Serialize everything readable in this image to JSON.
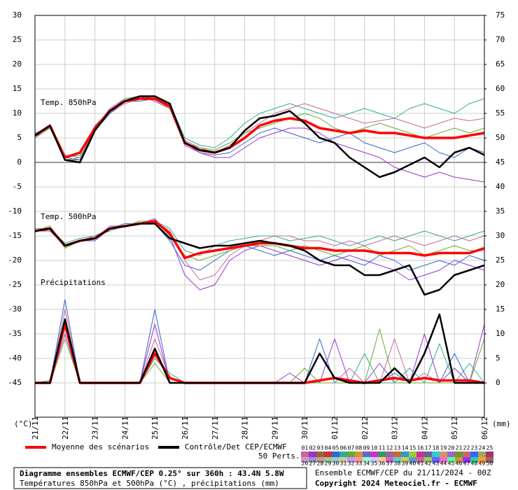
{
  "chart_data": {
    "type": "line",
    "ylabel": "(°C)",
    "y2label": "(mm)",
    "xlim": [
      0,
      360
    ],
    "x": [
      0,
      12,
      24,
      36,
      48,
      60,
      72,
      84,
      96,
      108,
      120,
      132,
      144,
      156,
      168,
      180,
      192,
      204,
      216,
      228,
      240,
      252,
      264,
      276,
      288,
      300,
      312,
      324,
      336,
      348,
      360
    ],
    "xticks": [
      {
        "value": 0,
        "label": "21/11"
      },
      {
        "value": 24,
        "label": "22/11"
      },
      {
        "value": 48,
        "label": "23/11"
      },
      {
        "value": 72,
        "label": "24/11"
      },
      {
        "value": 96,
        "label": "25/11"
      },
      {
        "value": 120,
        "label": "26/11"
      },
      {
        "value": 144,
        "label": "27/11"
      },
      {
        "value": 168,
        "label": "28/11"
      },
      {
        "value": 192,
        "label": "29/11"
      },
      {
        "value": 216,
        "label": "30/11"
      },
      {
        "value": 240,
        "label": "01/12"
      },
      {
        "value": 264,
        "label": "02/12"
      },
      {
        "value": 288,
        "label": "03/12"
      },
      {
        "value": 312,
        "label": "04/12"
      },
      {
        "value": 336,
        "label": "05/12"
      },
      {
        "value": 360,
        "label": "06/12"
      }
    ],
    "ylim": [
      -52,
      30
    ],
    "yticks": [
      30,
      25,
      20,
      15,
      10,
      5,
      0,
      -5,
      -10,
      -15,
      -20,
      -25,
      -30,
      -35,
      -40,
      -45
    ],
    "y2lim": [
      -7,
      75
    ],
    "y2ticks": [
      75,
      70,
      65,
      60,
      55,
      50,
      45,
      40,
      35,
      30,
      25,
      20,
      15,
      10,
      5,
      0
    ],
    "grid": true,
    "annotations": [
      "Temp. 850hPa",
      "Temp. 500hPa",
      "Précipitations"
    ],
    "series": [
      {
        "name": "Moyenne des scénarios",
        "color": "#ff0000",
        "values": [
          5.5,
          7.5,
          1,
          2,
          7,
          10.5,
          12.5,
          13,
          13,
          11.5,
          4,
          2.5,
          2,
          3,
          5,
          7.5,
          8.5,
          9,
          8.5,
          7,
          6.5,
          6,
          6.5,
          6,
          6,
          5.5,
          5,
          5,
          5,
          5.5,
          6
        ]
      },
      {
        "name": "Contrôle/Det CEP/ECMWF",
        "color": "#000000",
        "values": [
          5.5,
          7.5,
          0.5,
          0,
          6.5,
          10.5,
          12.5,
          13.5,
          13.5,
          12,
          4,
          2.5,
          2,
          3,
          6.5,
          9,
          9.5,
          10.5,
          8,
          5,
          4,
          1,
          -1,
          -3,
          -2,
          -0.5,
          1,
          -1,
          2,
          3,
          1.5
        ]
      },
      {
        "color": "#cc6699",
        "values": [
          5.5,
          7,
          1.5,
          1,
          6.5,
          10,
          12,
          13,
          13.5,
          11,
          4.5,
          3,
          2,
          3.5,
          6,
          8,
          10,
          11,
          12,
          11,
          10,
          9,
          8,
          8.5,
          9,
          8,
          7,
          8,
          9,
          8.5,
          9
        ]
      },
      {
        "color": "#9933cc",
        "values": [
          5,
          7.5,
          0.5,
          0.5,
          7,
          11,
          13,
          13.5,
          12.5,
          11,
          3.5,
          2,
          1,
          1,
          3,
          5,
          6,
          7,
          7,
          6,
          4,
          3,
          2,
          1,
          -1,
          -2,
          -3,
          -2,
          -3,
          -3.5,
          -4
        ]
      },
      {
        "color": "#33aa99",
        "values": [
          6,
          7,
          1,
          1.5,
          7.5,
          10.5,
          12.5,
          13,
          13,
          12,
          5,
          3.5,
          3,
          5,
          8,
          10,
          11,
          12,
          11,
          10,
          9,
          10,
          11,
          10,
          9,
          11,
          12,
          11,
          10,
          12,
          13
        ]
      },
      {
        "color": "#3366cc",
        "values": [
          5.5,
          7.5,
          1,
          0.5,
          6.5,
          10,
          12.5,
          12.5,
          13,
          11.5,
          4,
          2,
          1.5,
          2,
          4,
          6,
          7,
          6,
          5,
          4,
          5,
          6,
          4,
          3,
          2,
          3,
          4,
          2,
          1,
          3,
          2
        ]
      },
      {
        "color": "#66aa33",
        "values": [
          5,
          7,
          0.5,
          1,
          7,
          10.5,
          13,
          13.5,
          13,
          11,
          4,
          3,
          2.5,
          4,
          6,
          7,
          8,
          9,
          10,
          9,
          7,
          6,
          7,
          8,
          7,
          6,
          5,
          6,
          7,
          6,
          7
        ]
      },
      {
        "color": "#ff0000",
        "values": [
          -14,
          -13.5,
          -17,
          -16,
          -15.5,
          -13.5,
          -13,
          -12.5,
          -12,
          -14.5,
          -19.5,
          -18.5,
          -18,
          -17.5,
          -17,
          -16.5,
          -16.5,
          -17,
          -17.5,
          -17.5,
          -18,
          -18,
          -18,
          -18.5,
          -18.5,
          -18.5,
          -19,
          -18.5,
          -18.5,
          -18.5,
          -17.5
        ]
      },
      {
        "color": "#000000",
        "values": [
          -14,
          -13.5,
          -17,
          -16,
          -15.5,
          -13.5,
          -13,
          -12.5,
          -12.5,
          -15.5,
          -16.5,
          -17.5,
          -17,
          -17,
          -16.5,
          -16,
          -16.5,
          -17,
          -18,
          -20,
          -21,
          -21,
          -23,
          -23,
          -22,
          -21,
          -27,
          -26,
          -23,
          -22,
          -21
        ]
      },
      {
        "color": "#cc6699",
        "values": [
          -14,
          -13,
          -17,
          -16,
          -15,
          -13.5,
          -13,
          -12,
          -12,
          -14,
          -20,
          -24,
          -23,
          -19,
          -17,
          -16,
          -15,
          -15,
          -16,
          -16,
          -17,
          -16,
          -17,
          -16,
          -15,
          -16,
          -17,
          -16,
          -15,
          -16,
          -15
        ]
      },
      {
        "color": "#9933cc",
        "values": [
          -14,
          -14,
          -17,
          -16,
          -15.5,
          -13,
          -13,
          -12.5,
          -11.5,
          -15,
          -23,
          -26,
          -25,
          -20,
          -18,
          -17,
          -18,
          -19,
          -20,
          -21,
          -20,
          -19,
          -20,
          -21,
          -22,
          -24,
          -23,
          -22,
          -20,
          -21,
          -22
        ]
      },
      {
        "color": "#33aa99",
        "values": [
          -13.5,
          -13.5,
          -16.5,
          -15.5,
          -15,
          -14,
          -13,
          -12,
          -12,
          -13.5,
          -18,
          -19,
          -17,
          -16,
          -15.5,
          -15,
          -15,
          -16,
          -15.5,
          -15,
          -16,
          -17,
          -16,
          -15,
          -16,
          -15,
          -14,
          -15,
          -16,
          -15,
          -14
        ]
      },
      {
        "color": "#3366cc",
        "values": [
          -14,
          -13.5,
          -17,
          -16,
          -16,
          -13.5,
          -12.5,
          -12.5,
          -12.5,
          -16,
          -21,
          -22,
          -20,
          -18,
          -17,
          -18,
          -19,
          -18,
          -19,
          -20,
          -19,
          -20,
          -21,
          -19,
          -20,
          -22,
          -21,
          -20,
          -21,
          -19,
          -20
        ]
      },
      {
        "color": "#66aa33",
        "values": [
          -14,
          -13,
          -17.5,
          -16,
          -15.5,
          -13.5,
          -13,
          -12,
          -12,
          -15,
          -19,
          -20,
          -19,
          -18,
          -17,
          -17,
          -17,
          -18,
          -17,
          -18,
          -19,
          -18,
          -17,
          -19,
          -18,
          -17,
          -19,
          -18,
          -17,
          -18,
          -18
        ]
      },
      {
        "color": "#ff0000",
        "axis": "y2",
        "values": [
          0,
          0,
          12,
          0,
          0,
          0,
          0,
          0,
          6,
          1,
          0,
          0,
          0,
          0,
          0,
          0,
          0,
          0,
          0,
          0.5,
          1,
          0.5,
          0,
          0.5,
          1,
          0.5,
          1,
          0.5,
          0.5,
          0.5,
          0
        ]
      },
      {
        "color": "#000000",
        "axis": "y2",
        "values": [
          0,
          0,
          13,
          0,
          0,
          0,
          0,
          0,
          7,
          0,
          0,
          0,
          0,
          0,
          0,
          0,
          0,
          0,
          0,
          6,
          1,
          0,
          0,
          0,
          3,
          0,
          6,
          14,
          0,
          0,
          0
        ]
      },
      {
        "color": "#cc6699",
        "axis": "y2",
        "values": [
          0,
          0,
          15,
          0,
          0,
          0,
          0,
          0,
          9,
          1,
          0,
          0,
          0,
          0,
          0,
          0,
          0,
          0,
          0,
          0,
          0,
          3,
          0,
          0,
          9,
          0,
          2,
          0,
          0,
          0,
          0
        ]
      },
      {
        "color": "#9933cc",
        "axis": "y2",
        "values": [
          0,
          0,
          10,
          0,
          0,
          0,
          0,
          0,
          12,
          0,
          0,
          0,
          0,
          0,
          0,
          0,
          0,
          2,
          0,
          0,
          9,
          0,
          0,
          4,
          0,
          0,
          10,
          0,
          3,
          0,
          12
        ]
      },
      {
        "color": "#33aa99",
        "axis": "y2",
        "values": [
          0,
          0.5,
          12,
          0,
          0,
          0,
          0,
          0,
          5,
          2,
          0,
          0,
          0,
          0,
          0,
          0,
          0,
          0,
          0,
          0,
          0,
          0,
          6,
          0,
          0,
          3,
          0,
          8,
          0,
          4,
          0
        ]
      },
      {
        "color": "#3366cc",
        "axis": "y2",
        "values": [
          0,
          0,
          17,
          0,
          0,
          0,
          0,
          0,
          15,
          0,
          0,
          0,
          0,
          0,
          0,
          0,
          0,
          0,
          0,
          9,
          0,
          0,
          0,
          0,
          2,
          0,
          0,
          0,
          6,
          0,
          0
        ]
      },
      {
        "color": "#66aa33",
        "axis": "y2",
        "values": [
          0,
          0,
          9,
          0,
          0,
          0,
          0,
          0,
          4,
          0,
          0,
          0,
          0,
          0,
          0,
          0,
          0,
          0,
          3,
          0,
          0,
          0,
          0,
          11,
          0,
          0,
          0,
          0,
          0,
          0,
          9
        ]
      }
    ],
    "perturbation_count_label": "50 Perts.",
    "perturbation_legend": {
      "labels": [
        "01",
        "02",
        "03",
        "04",
        "05",
        "06",
        "07",
        "08",
        "09",
        "10",
        "11",
        "12",
        "13",
        "14",
        "15",
        "16",
        "17",
        "18",
        "19",
        "20",
        "21",
        "22",
        "23",
        "24",
        "25",
        "26",
        "27",
        "28",
        "29",
        "30",
        "31",
        "32",
        "33",
        "34",
        "35",
        "36",
        "37",
        "38",
        "39",
        "40",
        "41",
        "42",
        "43",
        "44",
        "45",
        "46",
        "47",
        "48",
        "49",
        "50"
      ],
      "colors": [
        "#cc6699",
        "#9933cc",
        "#996633",
        "#cc3333",
        "#3366cc",
        "#33aa99",
        "#66aa33",
        "#cc9933",
        "#6666cc",
        "#cc33cc",
        "#339966",
        "#996699",
        "#cc6633",
        "#3399cc",
        "#99cc33",
        "#cc3399",
        "#666699",
        "#33cccc",
        "#cc9966",
        "#9966cc",
        "#669933",
        "#cc6666",
        "#3366ff",
        "#99aa66",
        "#aa3366",
        "#cc99cc",
        "#9999cc",
        "#cc9999",
        "#99cc99",
        "#99cccc",
        "#cccc99",
        "#cc99ff",
        "#ff9999",
        "#99ffcc",
        "#ccccff",
        "#ffcc99",
        "#cc66cc",
        "#66cccc",
        "#cccc66",
        "#6699cc",
        "#cc6699",
        "#99cc66",
        "#6666ff",
        "#ff66cc",
        "#66ff99",
        "#cc9933",
        "#9933ff",
        "#33cc99",
        "#ff9933",
        "#996666"
      ]
    },
    "footer": {
      "title": "Diagramme ensembles ECMWF/CEP 0.25° sur 360h : 43.4N 5.8W",
      "subtitle": "Températures 850hPa et 500hPa (°C) , précipitations (mm)",
      "run": "Ensemble ECMWF/CEP du 21/11/2024 - 00Z",
      "copyright": "Copyright 2024 Meteociel.fr - ECMWF"
    }
  }
}
